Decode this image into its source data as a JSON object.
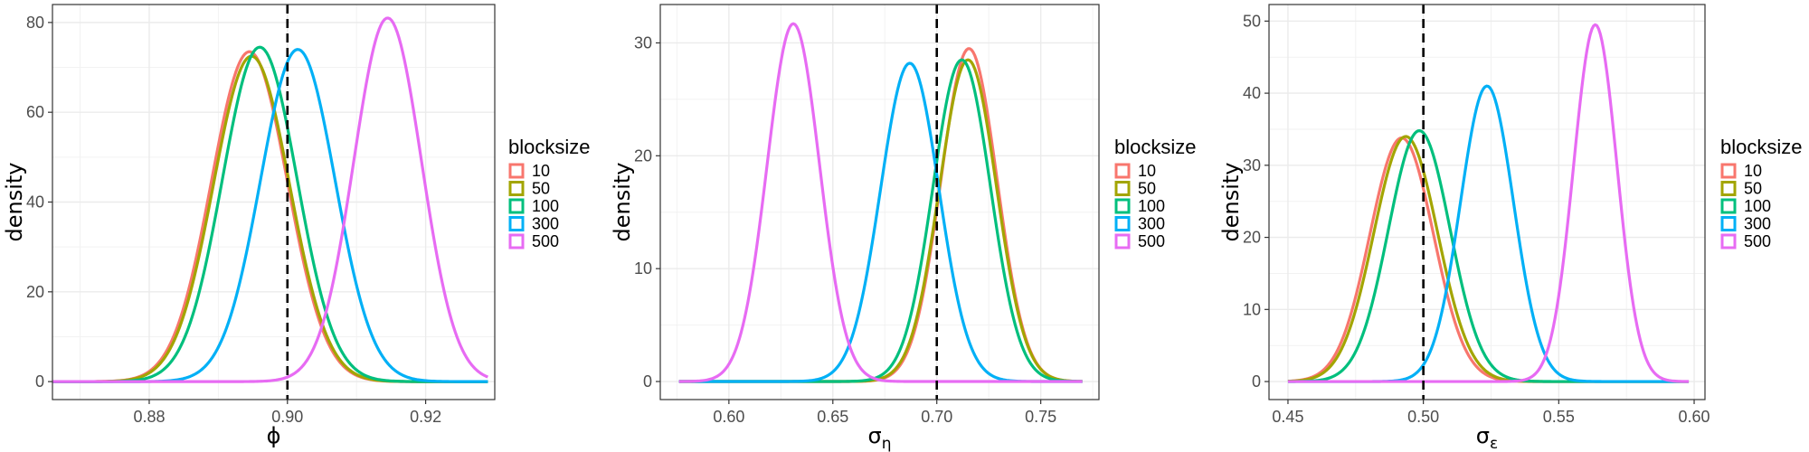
{
  "legend_title": "blocksize",
  "series_colors": {
    "10": "#F8766D",
    "50": "#A3A500",
    "100": "#00BF7D",
    "300": "#00B0F6",
    "500": "#E76BF3"
  },
  "chart_data": [
    {
      "type": "line",
      "xlabel": "ϕ",
      "ylabel": "density",
      "xlim": [
        0.866,
        0.93
      ],
      "ylim": [
        -4,
        84
      ],
      "xticks": [
        0.88,
        0.9,
        0.92
      ],
      "xtick_labels": [
        "0.88",
        "0.90",
        "0.92"
      ],
      "yticks": [
        0,
        20,
        40,
        60,
        80
      ],
      "ref_line": 0.9,
      "x_start": 0.866,
      "x_end": 0.929,
      "legend": {
        "title": "blocksize",
        "entries": [
          "10",
          "50",
          "100",
          "300",
          "500"
        ]
      },
      "series": [
        {
          "name": "10",
          "mean": 0.8945,
          "sd": 0.0055,
          "peak": 73.5
        },
        {
          "name": "50",
          "mean": 0.8948,
          "sd": 0.0055,
          "peak": 72.5
        },
        {
          "name": "100",
          "mean": 0.896,
          "sd": 0.0054,
          "peak": 74.5
        },
        {
          "name": "300",
          "mean": 0.9015,
          "sd": 0.0054,
          "peak": 74.0
        },
        {
          "name": "500",
          "mean": 0.9145,
          "sd": 0.0049,
          "peak": 81.0
        }
      ]
    },
    {
      "type": "line",
      "xlabel": "ση",
      "ylabel": "density",
      "xlim": [
        0.567,
        0.778
      ],
      "ylim": [
        -1.6,
        33.4
      ],
      "xticks": [
        0.6,
        0.65,
        0.7,
        0.75
      ],
      "xtick_labels": [
        "0.60",
        "0.65",
        "0.70",
        "0.75"
      ],
      "yticks": [
        0,
        10,
        20,
        30
      ],
      "ref_line": 0.7,
      "x_start": 0.576,
      "x_end": 0.77,
      "legend": {
        "title": "blocksize",
        "entries": [
          "10",
          "50",
          "100",
          "300",
          "500"
        ]
      },
      "series": [
        {
          "name": "10",
          "mean": 0.7155,
          "sd": 0.0135,
          "peak": 29.5
        },
        {
          "name": "50",
          "mean": 0.715,
          "sd": 0.0137,
          "peak": 28.5
        },
        {
          "name": "100",
          "mean": 0.712,
          "sd": 0.0138,
          "peak": 28.5
        },
        {
          "name": "300",
          "mean": 0.687,
          "sd": 0.014,
          "peak": 28.2
        },
        {
          "name": "500",
          "mean": 0.631,
          "sd": 0.0126,
          "peak": 31.7
        }
      ]
    },
    {
      "type": "line",
      "xlabel": "σε",
      "ylabel": "density",
      "xlim": [
        0.443,
        0.604
      ],
      "ylim": [
        -2.5,
        52.3
      ],
      "xticks": [
        0.45,
        0.5,
        0.55,
        0.6
      ],
      "xtick_labels": [
        "0.45",
        "0.50",
        "0.55",
        "0.60"
      ],
      "yticks": [
        0,
        10,
        20,
        30,
        40,
        50
      ],
      "ref_line": 0.5,
      "x_start": 0.45,
      "x_end": 0.598,
      "legend": {
        "title": "blocksize",
        "entries": [
          "10",
          "50",
          "100",
          "300",
          "500"
        ]
      },
      "series": [
        {
          "name": "10",
          "mean": 0.492,
          "sd": 0.0117,
          "peak": 33.8
        },
        {
          "name": "50",
          "mean": 0.4935,
          "sd": 0.0118,
          "peak": 34.0
        },
        {
          "name": "100",
          "mean": 0.4985,
          "sd": 0.0114,
          "peak": 34.8
        },
        {
          "name": "300",
          "mean": 0.5235,
          "sd": 0.0098,
          "peak": 41.0
        },
        {
          "name": "500",
          "mean": 0.5635,
          "sd": 0.008,
          "peak": 49.5
        }
      ]
    }
  ]
}
